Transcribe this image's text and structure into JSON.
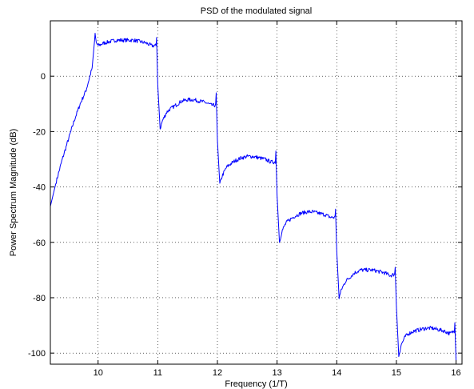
{
  "chart_data": {
    "type": "line",
    "title": "PSD of the modulated signal",
    "xlabel": "Frequency (1/T)",
    "ylabel": "Power Spectrum Magnitude (dB)",
    "xlim": [
      9.2,
      16.1
    ],
    "ylim": [
      -104,
      20
    ],
    "xticks": [
      10,
      11,
      12,
      13,
      14,
      15,
      16
    ],
    "yticks": [
      0,
      -20,
      -40,
      -60,
      -80,
      -100
    ],
    "xtick_labels": [
      "10",
      "11",
      "12",
      "13",
      "14",
      "15",
      "16"
    ],
    "ytick_labels": [
      "0",
      "-20",
      "-40",
      "-60",
      "-80",
      "-100"
    ],
    "grid": true,
    "series_color": "#0000ff",
    "series": [
      {
        "x": [
          9.2,
          9.3,
          9.4,
          9.5,
          9.6,
          9.7,
          9.8,
          9.9,
          9.95,
          9.97,
          10.0,
          10.1,
          10.2,
          10.3,
          10.4,
          10.5,
          10.6,
          10.7,
          10.8,
          10.9,
          10.97,
          10.98,
          11.0,
          11.04,
          11.08,
          11.15,
          11.2,
          11.3,
          11.4,
          11.5,
          11.6,
          11.7,
          11.8,
          11.9,
          11.97,
          11.98,
          12.0,
          12.04,
          12.08,
          12.15,
          12.2,
          12.3,
          12.4,
          12.5,
          12.6,
          12.7,
          12.8,
          12.9,
          12.97,
          12.98,
          13.0,
          13.04,
          13.08,
          13.15,
          13.2,
          13.3,
          13.4,
          13.5,
          13.6,
          13.7,
          13.8,
          13.9,
          13.97,
          13.98,
          14.0,
          14.04,
          14.08,
          14.15,
          14.2,
          14.3,
          14.4,
          14.5,
          14.6,
          14.7,
          14.8,
          14.9,
          14.97,
          14.98,
          15.0,
          15.04,
          15.08,
          15.15,
          15.2,
          15.3,
          15.4,
          15.5,
          15.6,
          15.7,
          15.8,
          15.9,
          15.97,
          15.98,
          16.0
        ],
        "y": [
          -47,
          -38,
          -30,
          -23,
          -16,
          -10,
          -5,
          3,
          15,
          12,
          11,
          12,
          12.5,
          13,
          13,
          13,
          13,
          12.5,
          12,
          11,
          11,
          14,
          -3,
          -19,
          -16,
          -13,
          -12,
          -10.5,
          -9,
          -8.5,
          -8.5,
          -9,
          -9.5,
          -10.5,
          -10.5,
          -6,
          -23,
          -39,
          -36,
          -33,
          -32,
          -30.5,
          -29.5,
          -29,
          -29,
          -29.5,
          -30,
          -31,
          -31,
          -27,
          -43,
          -60,
          -56,
          -53,
          -52,
          -50.5,
          -49.5,
          -49,
          -49,
          -49.5,
          -50,
          -51,
          -51,
          -48,
          -63,
          -80,
          -77,
          -74,
          -73,
          -71,
          -70,
          -70,
          -70,
          -70.5,
          -71,
          -72,
          -71.5,
          -69,
          -83,
          -101,
          -97,
          -94,
          -93,
          -92,
          -91.5,
          -91,
          -91,
          -91.5,
          -92,
          -93,
          -92,
          -89,
          -103
        ]
      }
    ]
  }
}
